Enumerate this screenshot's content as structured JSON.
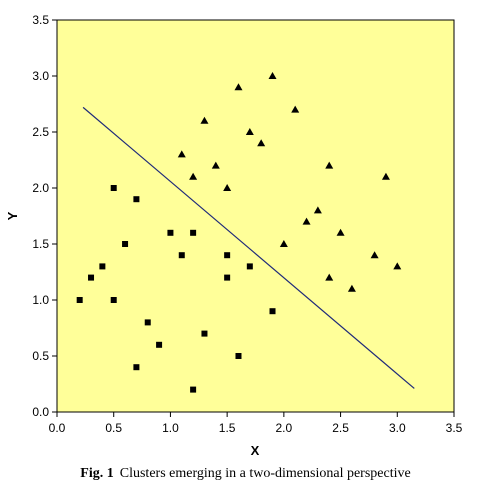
{
  "colors": {
    "plot_background": "#FFFF99",
    "marker": "#000000",
    "line": "#1F2A7A"
  },
  "caption": {
    "label": "Fig. 1",
    "text": "Clusters emerging in a two-dimensional perspective"
  },
  "chart_data": {
    "type": "scatter",
    "xlabel": "X",
    "ylabel": "Y",
    "xlim": [
      0,
      3.5
    ],
    "ylim": [
      0,
      3.5
    ],
    "xticks": [
      "0.0",
      "0.5",
      "1.0",
      "1.5",
      "2.0",
      "2.5",
      "3.0",
      "3.5"
    ],
    "yticks": [
      "0.0",
      "0.5",
      "1.0",
      "1.5",
      "2.0",
      "2.5",
      "3.0",
      "3.5"
    ],
    "grid": false,
    "legend": "none",
    "series": [
      {
        "marker": "square",
        "points": [
          [
            0.2,
            1.0
          ],
          [
            0.3,
            1.2
          ],
          [
            0.4,
            1.3
          ],
          [
            0.5,
            1.0
          ],
          [
            0.5,
            2.0
          ],
          [
            0.6,
            1.5
          ],
          [
            0.7,
            1.9
          ],
          [
            0.7,
            0.4
          ],
          [
            0.8,
            0.8
          ],
          [
            0.9,
            0.6
          ],
          [
            1.0,
            1.6
          ],
          [
            1.1,
            1.4
          ],
          [
            1.2,
            1.6
          ],
          [
            1.2,
            0.2
          ],
          [
            1.3,
            0.7
          ],
          [
            1.5,
            1.4
          ],
          [
            1.5,
            1.2
          ],
          [
            1.6,
            0.5
          ],
          [
            1.7,
            1.3
          ],
          [
            1.9,
            0.9
          ]
        ]
      },
      {
        "marker": "triangle",
        "points": [
          [
            1.1,
            2.3
          ],
          [
            1.2,
            2.1
          ],
          [
            1.3,
            2.6
          ],
          [
            1.4,
            2.2
          ],
          [
            1.5,
            2.0
          ],
          [
            1.6,
            2.9
          ],
          [
            1.7,
            2.5
          ],
          [
            1.8,
            2.4
          ],
          [
            1.9,
            3.0
          ],
          [
            2.0,
            1.5
          ],
          [
            2.1,
            2.7
          ],
          [
            2.2,
            1.7
          ],
          [
            2.3,
            1.8
          ],
          [
            2.4,
            2.2
          ],
          [
            2.4,
            1.2
          ],
          [
            2.5,
            1.6
          ],
          [
            2.6,
            1.1
          ],
          [
            2.8,
            1.4
          ],
          [
            2.9,
            2.1
          ],
          [
            3.0,
            1.3
          ]
        ]
      }
    ],
    "separator_line": [
      [
        0.23,
        2.72
      ],
      [
        3.15,
        0.21
      ]
    ]
  }
}
